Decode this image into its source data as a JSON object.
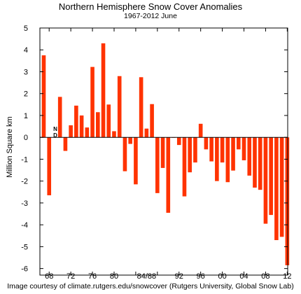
{
  "chart_data": {
    "type": "bar",
    "title": "Northern Hemisphere Snow Cover Anomalies",
    "subtitle": "1967-2012 June",
    "ylabel": "Million Square km",
    "xlabel": "",
    "ylim": [
      -6.3,
      5
    ],
    "yticks": [
      5,
      4,
      3,
      2,
      1,
      0,
      -1,
      -2,
      -3,
      -4,
      -5,
      -6
    ],
    "xtick_labels": [
      "68",
      "72",
      "76",
      "80",
      "84/88",
      "92",
      "96",
      "00",
      "04",
      "08",
      "12"
    ],
    "xtick_years": [
      1968,
      1972,
      1976,
      1980,
      1984,
      1988,
      1992,
      1996,
      2000,
      2004,
      2008,
      2012
    ],
    "xtick_text": [
      "68",
      "72",
      "76",
      "80",
      "84",
      "88",
      "92",
      "96",
      "00",
      "04",
      "08",
      "12"
    ],
    "bar_color": "#ff3300",
    "grid": false,
    "missing_note": {
      "year": 1969,
      "lines": [
        "N",
        "D"
      ]
    },
    "years": [
      1967,
      1968,
      1970,
      1971,
      1972,
      1973,
      1974,
      1975,
      1976,
      1977,
      1978,
      1979,
      1980,
      1981,
      1982,
      1983,
      1984,
      1985,
      1986,
      1987,
      1988,
      1989,
      1990,
      1991,
      1992,
      1993,
      1994,
      1995,
      1996,
      1997,
      1998,
      1999,
      2000,
      2001,
      2002,
      2003,
      2004,
      2005,
      2006,
      2007,
      2008,
      2009,
      2010,
      2011,
      2012
    ],
    "values": [
      3.75,
      -2.65,
      1.85,
      -0.62,
      0.55,
      1.45,
      1.0,
      0.45,
      3.22,
      1.15,
      4.3,
      1.5,
      0.28,
      2.8,
      -1.55,
      -0.3,
      -2.15,
      2.75,
      0.4,
      1.52,
      -2.55,
      -1.4,
      -3.45,
      -0.02,
      -0.35,
      -2.7,
      -1.6,
      -1.15,
      0.62,
      -0.55,
      -1.1,
      -2.0,
      -1.15,
      -2.05,
      -1.52,
      -0.55,
      -1.05,
      -1.75,
      -2.3,
      -2.4,
      -3.95,
      -3.55,
      -4.7,
      -4.55,
      -5.85
    ]
  },
  "credit": "Image courtesy of climate.rutgers.edu/snowcover (Rutgers University, Global Snow Lab)"
}
